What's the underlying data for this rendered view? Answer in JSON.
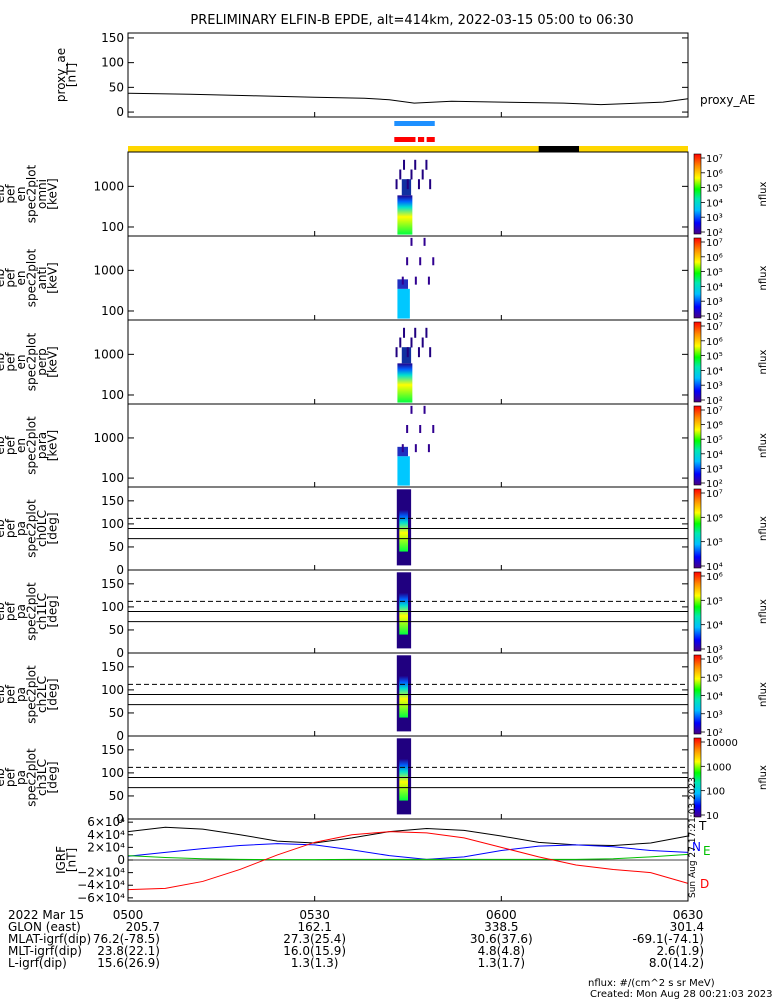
{
  "title": "PRELIMINARY ELFIN-B EPDE, alt=414km, 2022-03-15 05:00 to 06:30",
  "colors": {
    "proxy_line": "#000000",
    "sunlight": "#FFD700",
    "shadow": "#000000",
    "science_bar": "#1E90FF",
    "fgm_bar": "#FF0000",
    "grf_T": "#000000",
    "grf_N": "#0000FF",
    "grf_E": "#00C000",
    "grf_D": "#FF0000"
  },
  "orbit_bars": {
    "science_label": "",
    "segments": [
      {
        "t0": 0.0,
        "t1": 66.0,
        "color": "sunlight"
      },
      {
        "t0": 66.0,
        "t1": 72.5,
        "color": "shadow"
      },
      {
        "t0": 72.5,
        "t1": 90.0,
        "color": "sunlight"
      }
    ],
    "science": [
      {
        "t0": 42.8,
        "t1": 49.3
      }
    ],
    "fgm": [
      {
        "t0": 42.8,
        "t1": 46.2
      },
      {
        "t0": 46.6,
        "t1": 47.6
      },
      {
        "t0": 48.0,
        "t1": 49.3
      }
    ]
  },
  "chart_data": [
    {
      "type": "line",
      "panel": "proxy_ae",
      "ylabel": [
        "proxy_ae",
        "[nT]"
      ],
      "legend": "proxy_AE",
      "ylim": [
        -10,
        160
      ],
      "yticks": [
        "0",
        "50",
        "100",
        "150"
      ],
      "x_minutes": [
        0,
        10,
        20,
        30,
        38,
        42,
        46,
        52,
        60,
        70,
        76,
        82,
        86,
        90
      ],
      "values": [
        38,
        36,
        33,
        30,
        28,
        25,
        18,
        22,
        20,
        18,
        15,
        18,
        20,
        27
      ]
    },
    {
      "type": "heatmap",
      "panel": "omni",
      "ylabel": [
        "elb",
        "pef",
        "en",
        "spec2plot",
        "omni",
        "[keV]"
      ],
      "ylog": true,
      "ylim": [
        60,
        7000
      ],
      "yticks": [
        "100",
        "1000"
      ],
      "colorbar": {
        "label": "nflux",
        "ticks": [
          "10²",
          "10³",
          "10⁴",
          "10⁵",
          "10⁶",
          "10⁷"
        ]
      }
    },
    {
      "type": "heatmap",
      "panel": "anti",
      "ylabel": [
        "elb",
        "pef",
        "en",
        "spec2plot",
        "anti",
        "[keV]"
      ],
      "ylog": true,
      "ylim": [
        60,
        7000
      ],
      "yticks": [
        "100",
        "1000"
      ],
      "colorbar": {
        "label": "nflux",
        "ticks": [
          "10²",
          "10³",
          "10⁴",
          "10⁵",
          "10⁶",
          "10⁷"
        ]
      }
    },
    {
      "type": "heatmap",
      "panel": "perp",
      "ylabel": [
        "elb",
        "pef",
        "en",
        "spec2plot",
        "perp",
        "[keV]"
      ],
      "ylog": true,
      "ylim": [
        60,
        7000
      ],
      "yticks": [
        "100",
        "1000"
      ],
      "colorbar": {
        "label": "nflux",
        "ticks": [
          "10²",
          "10³",
          "10⁴",
          "10⁵",
          "10⁶",
          "10⁷"
        ]
      }
    },
    {
      "type": "heatmap",
      "panel": "para",
      "ylabel": [
        "elb",
        "pef",
        "en",
        "spec2plot",
        "para",
        "[keV]"
      ],
      "ylog": true,
      "ylim": [
        60,
        7000
      ],
      "yticks": [
        "100",
        "1000"
      ],
      "colorbar": {
        "label": "nflux",
        "ticks": [
          "10²",
          "10³",
          "10⁴",
          "10⁵",
          "10⁶",
          "10⁷"
        ]
      }
    },
    {
      "type": "heatmap",
      "panel": "ch0LC",
      "ylabel": [
        "elb",
        "pef",
        "pa",
        "spec2plot",
        "ch0LC",
        "[deg]"
      ],
      "ylog": false,
      "ylim": [
        0,
        180
      ],
      "yticks": [
        "0",
        "50",
        "100",
        "150"
      ],
      "lc_dashed": 112,
      "lc_solid": [
        90,
        68
      ],
      "colorbar": {
        "label": "nflux",
        "ticks": [
          "10⁴",
          "10⁵",
          "10⁶",
          "10⁷"
        ]
      }
    },
    {
      "type": "heatmap",
      "panel": "ch1LC",
      "ylabel": [
        "elb",
        "pef",
        "pa",
        "spec2plot",
        "ch1LC",
        "[deg]"
      ],
      "ylog": false,
      "ylim": [
        0,
        180
      ],
      "yticks": [
        "0",
        "50",
        "100",
        "150"
      ],
      "lc_dashed": 112,
      "lc_solid": [
        90,
        68
      ],
      "colorbar": {
        "label": "nflux",
        "ticks": [
          "10³",
          "10⁴",
          "10⁵",
          "10⁶"
        ]
      }
    },
    {
      "type": "heatmap",
      "panel": "ch2LC",
      "ylabel": [
        "elb",
        "pef",
        "pa",
        "spec2plot",
        "ch2LC",
        "[deg]"
      ],
      "ylog": false,
      "ylim": [
        0,
        180
      ],
      "yticks": [
        "0",
        "50",
        "100",
        "150"
      ],
      "lc_dashed": 112,
      "lc_solid": [
        90,
        68
      ],
      "colorbar": {
        "label": "nflux",
        "ticks": [
          "10²",
          "10³",
          "10⁴",
          "10⁵",
          "10⁶"
        ]
      }
    },
    {
      "type": "heatmap",
      "panel": "ch3LC",
      "ylabel": [
        "elb",
        "pef",
        "pa",
        "spec2plot",
        "ch3LC",
        "[deg]"
      ],
      "ylog": false,
      "ylim": [
        0,
        180
      ],
      "yticks": [
        "0",
        "50",
        "100",
        "150"
      ],
      "lc_dashed": 112,
      "lc_solid": [
        90,
        68
      ],
      "colorbar": {
        "label": "nflux",
        "ticks": [
          "10",
          "100",
          "1000",
          "10000"
        ]
      }
    },
    {
      "type": "line",
      "panel": "IGRF",
      "ylabel": [
        "IGRF",
        "[nT]"
      ],
      "ylim": [
        -65000,
        65000
      ],
      "yticks": [
        "6×10⁴",
        "4×10⁴",
        "2×10⁴",
        "0",
        "−2×10⁴",
        "−4×10⁴",
        "−6×10⁴"
      ],
      "ytick_values": [
        60000,
        40000,
        20000,
        0,
        -20000,
        -40000,
        -60000
      ],
      "x_minutes": [
        0,
        6,
        12,
        18,
        24,
        30,
        36,
        42,
        48,
        54,
        60,
        66,
        72,
        78,
        84,
        90
      ],
      "series": [
        {
          "name": "T",
          "values": [
            45000,
            52000,
            49000,
            40000,
            30000,
            27000,
            35000,
            45000,
            50000,
            47000,
            38000,
            28000,
            24000,
            23000,
            27000,
            38000
          ]
        },
        {
          "name": "N",
          "values": [
            6000,
            12000,
            18000,
            23000,
            26000,
            24000,
            16000,
            7000,
            1000,
            5000,
            15000,
            22000,
            24000,
            21000,
            15000,
            12000
          ]
        },
        {
          "name": "E",
          "values": [
            7000,
            4000,
            2000,
            1000,
            500,
            500,
            1000,
            1000,
            1000,
            1000,
            1000,
            1000,
            1000,
            2000,
            5000,
            9000
          ]
        },
        {
          "name": "D",
          "values": [
            -47000,
            -45000,
            -34000,
            -15000,
            8000,
            28000,
            40000,
            45000,
            43000,
            35000,
            20000,
            5000,
            -8000,
            -15000,
            -20000,
            -37000
          ]
        }
      ]
    }
  ],
  "xaxis": {
    "ticks_minutes": [
      0,
      30,
      60,
      90
    ],
    "header": "2022 Mar 15",
    "tick_labels": [
      "0500",
      "0530",
      "0600",
      "0630"
    ],
    "rows": [
      {
        "label": "GLON (east)",
        "values": [
          "205.7",
          "162.1",
          "338.5",
          "301.4"
        ]
      },
      {
        "label": "MLAT-igrf(dip)",
        "values": [
          "76.2(-78.5)",
          "27.3(25.4)",
          "30.6(37.6)",
          "-69.1(-74.1)"
        ]
      },
      {
        "label": "MLT-igrf(dip)",
        "values": [
          "23.8(22.1)",
          "16.0(15.9)",
          "4.8(4.8)",
          "2.6(1.9)"
        ]
      },
      {
        "label": "L-igrf(dip)",
        "values": [
          "15.6(26.9)",
          "1.3(1.3)",
          "1.3(1.7)",
          "8.0(14.2)"
        ]
      }
    ]
  },
  "footer": {
    "units": "nflux: #/(cm^2 s sr MeV)",
    "created": "Created: Mon Aug 28 00:21:03 2023",
    "side_stamp": "Sun Aug 27 17:21:03 2023"
  }
}
